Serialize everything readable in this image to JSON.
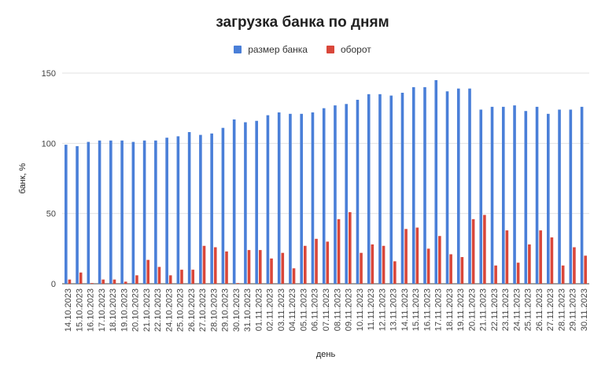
{
  "chart_data": {
    "type": "bar",
    "title": "загрузка банка по дням",
    "xlabel": "день",
    "ylabel": "банк, %",
    "ylim": [
      0,
      150
    ],
    "yticks": [
      0,
      50,
      100,
      150
    ],
    "legend_position": "top",
    "grid": true,
    "categories": [
      "14.10.2023",
      "15.10.2023",
      "16.10.2023",
      "17.10.2023",
      "18.10.2023",
      "19.10.2023",
      "20.10.2023",
      "21.10.2023",
      "22.10.2023",
      "24.10.2023",
      "25.10.2023",
      "26.10.2023",
      "27.10.2023",
      "28.10.2023",
      "29.10.2023",
      "30.10.2023",
      "31.10.2023",
      "01.11.2023",
      "02.11.2023",
      "03.11.2023",
      "04.11.2023",
      "05.11.2023",
      "06.11.2023",
      "07.11.2023",
      "08.11.2023",
      "09.11.2023",
      "10.11.2023",
      "11.11.2023",
      "12.11.2023",
      "13.11.2023",
      "14.11.2023",
      "15.11.2023",
      "16.11.2023",
      "17.11.2023",
      "18.11.2023",
      "19.11.2023",
      "20.11.2023",
      "21.11.2023",
      "22.11.2023",
      "23.11.2023",
      "24.11.2023",
      "25.11.2023",
      "26.11.2023",
      "27.11.2023",
      "28.11.2023",
      "29.11.2023",
      "30.11.2023"
    ],
    "series": [
      {
        "name": "размер банка",
        "color": "#4a7fd8",
        "values": [
          99,
          98,
          101,
          102,
          102,
          102,
          101,
          102,
          102,
          104,
          105,
          108,
          106,
          107,
          111,
          117,
          115,
          116,
          120,
          122,
          121,
          121,
          122,
          125,
          127,
          128,
          131,
          135,
          135,
          134,
          136,
          140,
          140,
          145,
          137,
          139,
          139,
          124,
          126,
          126,
          127,
          123,
          126,
          121,
          124,
          124,
          126
        ]
      },
      {
        "name": "оборот",
        "color": "#d9473a",
        "values": [
          3,
          8,
          0.5,
          3,
          3,
          1.5,
          6,
          17,
          12,
          6,
          10,
          10,
          27,
          26,
          23,
          0.5,
          24,
          24,
          18,
          22,
          11,
          27,
          32,
          30,
          46,
          51,
          22,
          28,
          27,
          16,
          39,
          40,
          25,
          34,
          21,
          19,
          46,
          49,
          13,
          38,
          15,
          28,
          38,
          33,
          13,
          26,
          20
        ]
      }
    ]
  },
  "colors": {
    "grid": "#e2e2e2",
    "baseline": "#444444"
  }
}
